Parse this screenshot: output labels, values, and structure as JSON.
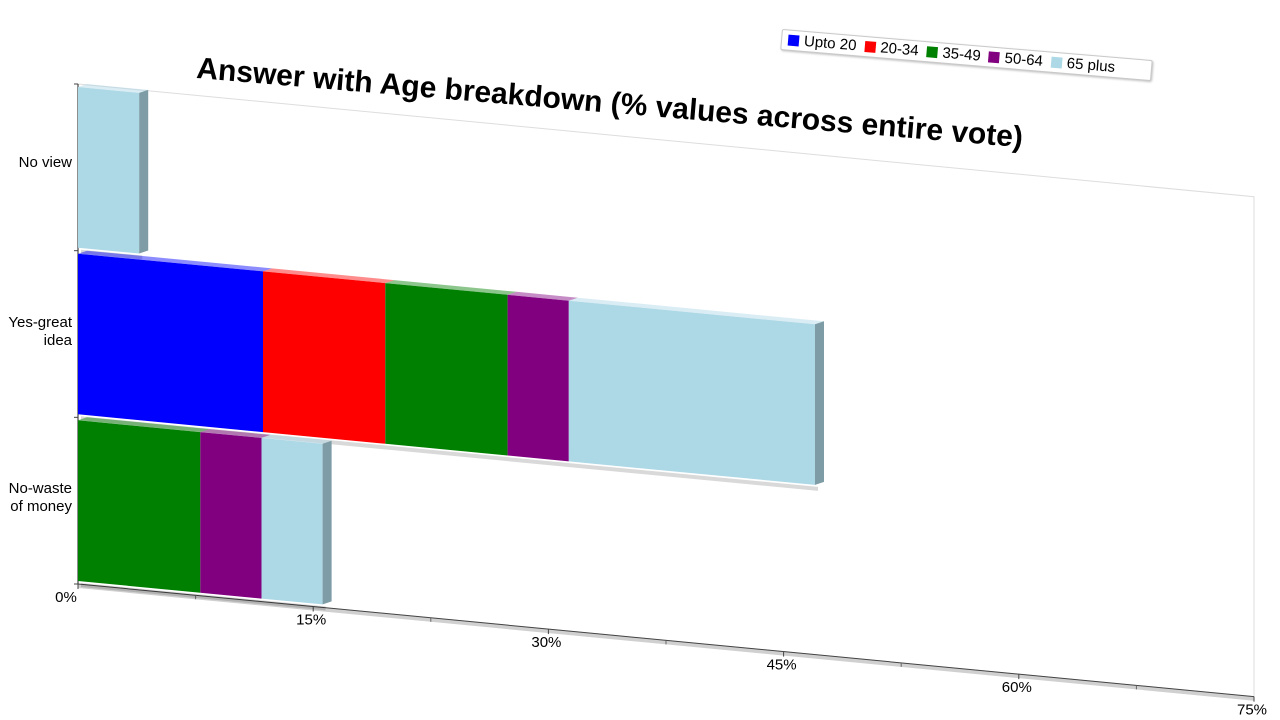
{
  "chart_data": {
    "type": "bar",
    "orientation": "horizontal",
    "stacked": true,
    "title": "Answer with Age breakdown (% values across entire vote)",
    "categories": [
      "No view",
      "Yes-great idea",
      "No-waste of money"
    ],
    "category_lines": [
      [
        "No view"
      ],
      [
        "Yes-great",
        "idea"
      ],
      [
        "No-waste",
        "of money"
      ]
    ],
    "series": [
      {
        "name": "Upto 20",
        "color": "#0000ff",
        "values": [
          0,
          11.8,
          0
        ]
      },
      {
        "name": "20-34",
        "color": "#ff0000",
        "values": [
          0,
          7.8,
          0
        ]
      },
      {
        "name": "35-49",
        "color": "#008000",
        "values": [
          0,
          7.8,
          7.8
        ]
      },
      {
        "name": "50-64",
        "color": "#800080",
        "values": [
          0,
          3.9,
          3.9
        ]
      },
      {
        "name": "65 plus",
        "color": "#add8e6",
        "values": [
          3.9,
          15.7,
          3.9
        ]
      }
    ],
    "x_ticks": [
      "0%",
      "15%",
      "30%",
      "45%",
      "60%",
      "75%"
    ],
    "xlim": [
      0,
      75
    ],
    "legend_position": "top-right",
    "grid": false
  }
}
